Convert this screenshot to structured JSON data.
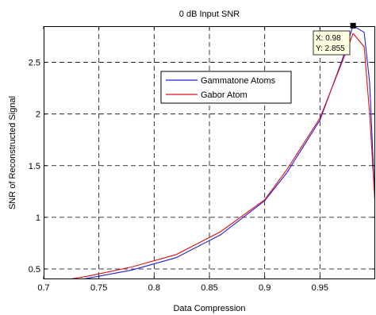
{
  "chart_data": {
    "type": "line",
    "title": "0 dB Input SNR",
    "xlabel": "Data Compression",
    "ylabel": "SNR of Reconstructed Signal",
    "xlim": [
      0.7,
      1.0
    ],
    "ylim": [
      0.4,
      2.85
    ],
    "xticks": [
      0.7,
      0.75,
      0.8,
      0.85,
      0.9,
      0.95
    ],
    "xtick_labels": [
      "0.7",
      "0.75",
      "0.8",
      "0.85",
      "0.9",
      "0.95"
    ],
    "yticks": [
      0.5,
      1,
      1.5,
      2,
      2.5
    ],
    "ytick_labels": [
      "0.5",
      "1",
      "1.5",
      "2",
      "2.5"
    ],
    "grid": true,
    "legend_position": "upper-center",
    "series": [
      {
        "name": "Gammatone Atoms",
        "color": "#2020e0",
        "x": [
          0.7,
          0.74,
          0.78,
          0.82,
          0.86,
          0.9,
          0.92,
          0.95,
          0.97,
          0.98,
          0.99,
          0.995,
          1.0
        ],
        "y": [
          0.34,
          0.41,
          0.49,
          0.61,
          0.83,
          1.16,
          1.43,
          1.94,
          2.52,
          2.855,
          2.79,
          2.3,
          1.1
        ]
      },
      {
        "name": "Gabor Atom",
        "color": "#e01010",
        "x": [
          0.7,
          0.74,
          0.78,
          0.82,
          0.86,
          0.9,
          0.92,
          0.95,
          0.97,
          0.98,
          0.99,
          0.995,
          1.0
        ],
        "y": [
          0.36,
          0.43,
          0.52,
          0.64,
          0.86,
          1.17,
          1.46,
          1.96,
          2.5,
          2.78,
          2.65,
          2.0,
          1.1
        ]
      }
    ],
    "annotation": {
      "x": 0.98,
      "y": 2.855,
      "lines": [
        "X: 0.98",
        "Y: 2.855"
      ]
    }
  }
}
